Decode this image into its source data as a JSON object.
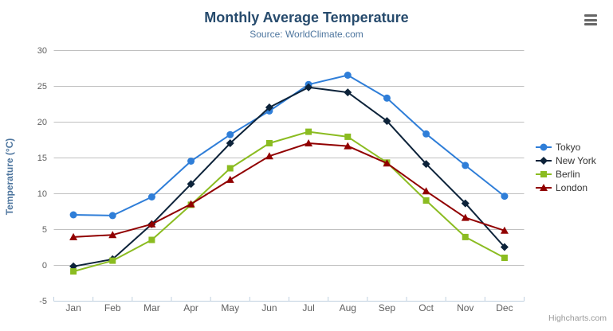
{
  "header": {
    "title": "Monthly Average Temperature",
    "subtitle": "Source: WorldClimate.com"
  },
  "chart_data": {
    "type": "line",
    "title": "Monthly Average Temperature",
    "subtitle": "Source: WorldClimate.com",
    "categories": [
      "Jan",
      "Feb",
      "Mar",
      "Apr",
      "May",
      "Jun",
      "Jul",
      "Aug",
      "Sep",
      "Oct",
      "Nov",
      "Dec"
    ],
    "xlabel": "",
    "ylabel": "Temperature (°C)",
    "ylim": [
      -5,
      30
    ],
    "ytick_step": 5,
    "yticks": [
      -5,
      0,
      5,
      10,
      15,
      20,
      25,
      30
    ],
    "grid": true,
    "legend_position": "right",
    "series": [
      {
        "name": "Tokyo",
        "color": "#2f7ed8",
        "marker": "circle",
        "values": [
          7.0,
          6.9,
          9.5,
          14.5,
          18.2,
          21.5,
          25.2,
          26.5,
          23.3,
          18.3,
          13.9,
          9.6
        ]
      },
      {
        "name": "New York",
        "color": "#0d233a",
        "marker": "diamond",
        "values": [
          -0.2,
          0.8,
          5.7,
          11.3,
          17.0,
          22.0,
          24.8,
          24.1,
          20.1,
          14.1,
          8.6,
          2.5
        ]
      },
      {
        "name": "Berlin",
        "color": "#8bbc21",
        "marker": "square",
        "values": [
          -0.9,
          0.6,
          3.5,
          8.4,
          13.5,
          17.0,
          18.6,
          17.9,
          14.3,
          9.0,
          3.9,
          1.0
        ]
      },
      {
        "name": "London",
        "color": "#910000",
        "marker": "triangle",
        "values": [
          3.9,
          4.2,
          5.7,
          8.5,
          11.9,
          15.2,
          17.0,
          16.6,
          14.2,
          10.3,
          6.6,
          4.8
        ]
      }
    ],
    "colors": {
      "title": "#274b6d",
      "subtitle": "#4d759e",
      "axis_title": "#4d759e",
      "axis_labels": "#606060",
      "gridline": "#C0C0C0",
      "axis_line": "#C0D0E0",
      "legend_text": "#333333",
      "credits_text": "#999999"
    }
  },
  "credits": {
    "label": "Highcharts.com"
  }
}
